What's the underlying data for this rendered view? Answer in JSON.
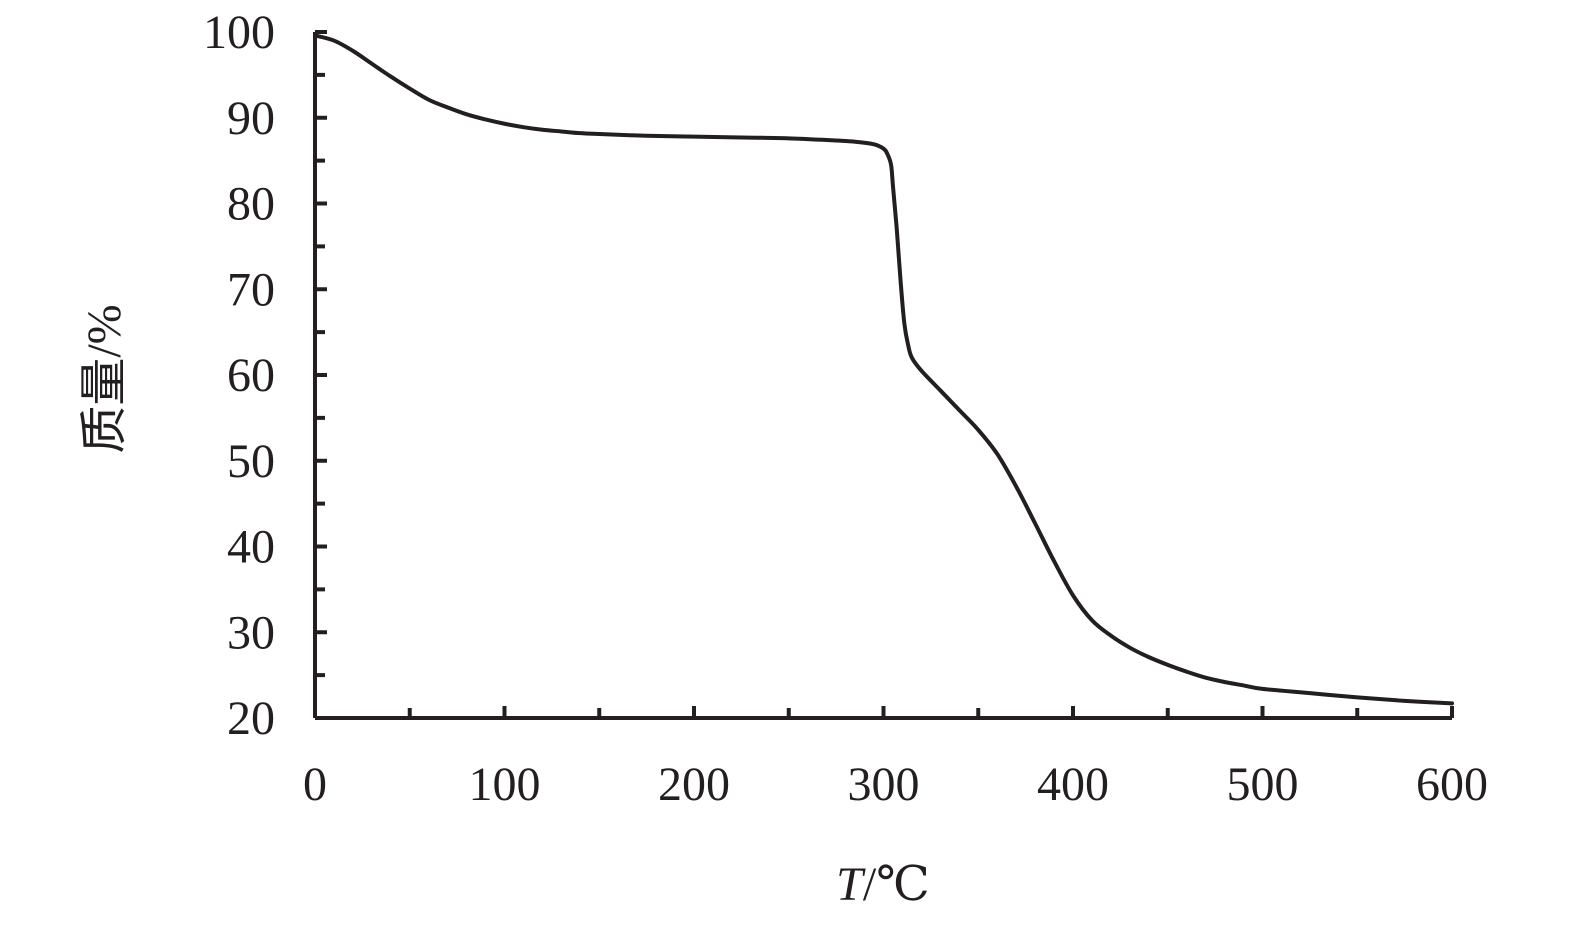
{
  "chart_data": {
    "type": "line",
    "xlabel_var": "T",
    "xlabel_unit": "/℃",
    "ylabel": "质量/%",
    "xlim": [
      0,
      600
    ],
    "ylim": [
      20,
      100
    ],
    "x_ticks": [
      0,
      100,
      200,
      300,
      400,
      500,
      600
    ],
    "x_minor_ticks": [
      50,
      150,
      250,
      350,
      450,
      550
    ],
    "y_ticks": [
      20,
      30,
      40,
      50,
      60,
      70,
      80,
      90,
      100
    ],
    "y_minor_ticks": [
      25,
      35,
      45,
      55,
      65,
      75,
      85,
      95
    ],
    "grid": false,
    "series": [
      {
        "color": "#231f20",
        "x": [
          0,
          10,
          20,
          30,
          40,
          50,
          60,
          70,
          80,
          90,
          100,
          110,
          120,
          130,
          140,
          150,
          175,
          200,
          225,
          250,
          270,
          285,
          295,
          300,
          302,
          304,
          305,
          307,
          309,
          311,
          313,
          315,
          320,
          330,
          340,
          350,
          360,
          370,
          380,
          390,
          400,
          410,
          420,
          430,
          440,
          450,
          460,
          470,
          480,
          490,
          500,
          525,
          550,
          575,
          600
        ],
        "y": [
          99.6,
          99.0,
          97.8,
          96.3,
          94.8,
          93.4,
          92.1,
          91.2,
          90.4,
          89.8,
          89.3,
          88.9,
          88.6,
          88.4,
          88.2,
          88.1,
          87.9,
          87.8,
          87.7,
          87.6,
          87.4,
          87.2,
          86.9,
          86.4,
          85.8,
          84.5,
          82.0,
          77.0,
          71.0,
          66.0,
          63.5,
          62.0,
          60.5,
          58.2,
          55.9,
          53.6,
          50.8,
          47.0,
          42.7,
          38.3,
          34.3,
          31.4,
          29.6,
          28.2,
          27.1,
          26.2,
          25.4,
          24.7,
          24.2,
          23.8,
          23.4,
          22.9,
          22.4,
          22.0,
          21.7
        ]
      }
    ]
  }
}
